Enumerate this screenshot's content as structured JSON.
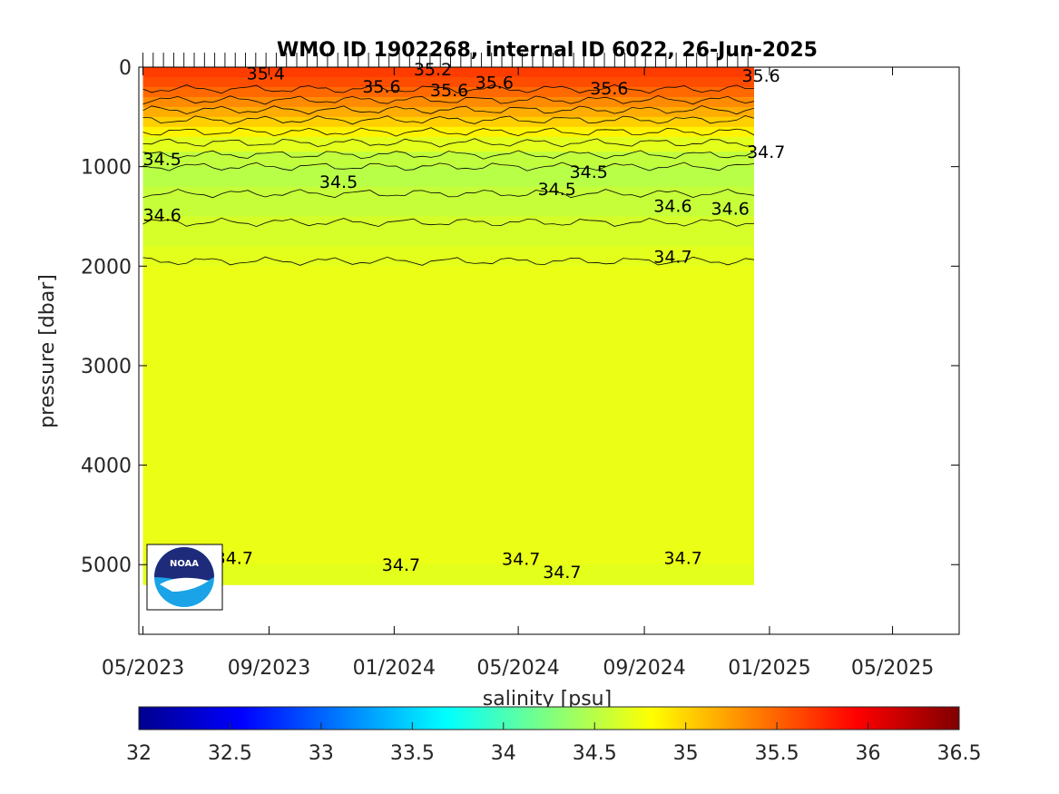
{
  "chart_data": {
    "type": "heatmap",
    "title": "WMO ID 1902268, internal ID 6022, 26-Jun-2025",
    "xlabel": "",
    "ylabel": "pressure [dbar]",
    "x_ticks": [
      "05/2023",
      "09/2023",
      "01/2024",
      "05/2024",
      "09/2024",
      "01/2025",
      "05/2025"
    ],
    "xlim": [
      "2023-04-27",
      "2025-07-05"
    ],
    "y_ticks": [
      0,
      1000,
      2000,
      3000,
      4000,
      5000
    ],
    "ylim": [
      0,
      5700
    ],
    "y_reversed": true,
    "grid": false,
    "data_start": "2023-05-01",
    "data_end": "2024-12-17",
    "colorbar": {
      "label": "salinity [psu]",
      "range": [
        32,
        36.5
      ],
      "ticks": [
        "32",
        "32.5",
        "33",
        "33.5",
        "34",
        "34.5",
        "35",
        "35.5",
        "36",
        "36.5"
      ],
      "colormap": "jet"
    },
    "salinity_profile": [
      {
        "pressure": 0,
        "salinity": 35.7
      },
      {
        "pressure": 100,
        "salinity": 35.65
      },
      {
        "pressure": 200,
        "salinity": 35.55
      },
      {
        "pressure": 300,
        "salinity": 35.4
      },
      {
        "pressure": 400,
        "salinity": 35.25
      },
      {
        "pressure": 500,
        "salinity": 35.1
      },
      {
        "pressure": 600,
        "salinity": 34.95
      },
      {
        "pressure": 700,
        "salinity": 34.78
      },
      {
        "pressure": 850,
        "salinity": 34.6
      },
      {
        "pressure": 1000,
        "salinity": 34.48
      },
      {
        "pressure": 1200,
        "salinity": 34.52
      },
      {
        "pressure": 1500,
        "salinity": 34.6
      },
      {
        "pressure": 1800,
        "salinity": 34.66
      },
      {
        "pressure": 2000,
        "salinity": 34.72
      },
      {
        "pressure": 5000,
        "salinity": 34.72
      },
      {
        "pressure": 5200,
        "salinity": 34.66
      }
    ],
    "contours": [
      {
        "level": "35.6",
        "pressure": 220
      },
      {
        "level": "35.4",
        "pressure": 330
      },
      {
        "level": "35.2",
        "pressure": 430
      },
      {
        "level": "35",
        "pressure": 530
      },
      {
        "level": "34.8",
        "pressure": 650
      },
      {
        "level": "34.7",
        "pressure": 760
      },
      {
        "level": "34.6",
        "pressure": 880
      },
      {
        "level": "34.5",
        "pressure": 1000
      },
      {
        "level": "34.5",
        "pressure": 1270
      },
      {
        "level": "34.6",
        "pressure": 1560
      },
      {
        "level": "34.7",
        "pressure": 1950
      }
    ],
    "contour_labels": [
      {
        "text": "35.4",
        "date": "2023-08-10",
        "pressure": 60
      },
      {
        "text": "35.6",
        "date": "2023-12-01",
        "pressure": 190
      },
      {
        "text": "35.2",
        "date": "2024-01-20",
        "pressure": 20
      },
      {
        "text": "35.6",
        "date": "2024-02-05",
        "pressure": 230
      },
      {
        "text": "35.6",
        "date": "2024-03-20",
        "pressure": 150
      },
      {
        "text": "35.6",
        "date": "2024-07-10",
        "pressure": 210
      },
      {
        "text": "35.6",
        "date": "2024-12-05",
        "pressure": 80
      },
      {
        "text": "34.5",
        "date": "2023-05-01",
        "pressure": 920
      },
      {
        "text": "34.5",
        "date": "2023-10-20",
        "pressure": 1150
      },
      {
        "text": "34.5",
        "date": "2024-06-20",
        "pressure": 1050
      },
      {
        "text": "34.5",
        "date": "2024-05-20",
        "pressure": 1220
      },
      {
        "text": "34.6",
        "date": "2023-05-01",
        "pressure": 1480
      },
      {
        "text": "34.6",
        "date": "2024-09-10",
        "pressure": 1390
      },
      {
        "text": "34.6",
        "date": "2024-11-05",
        "pressure": 1420
      },
      {
        "text": "34.7",
        "date": "2024-12-10",
        "pressure": 850
      },
      {
        "text": "34.7",
        "date": "2024-09-10",
        "pressure": 1900
      },
      {
        "text": "34.7",
        "date": "2023-07-10",
        "pressure": 4930
      },
      {
        "text": "34.7",
        "date": "2023-12-20",
        "pressure": 5000
      },
      {
        "text": "34.7",
        "date": "2024-04-15",
        "pressure": 4940
      },
      {
        "text": "34.7",
        "date": "2024-05-25",
        "pressure": 5070
      },
      {
        "text": "34.7",
        "date": "2024-09-20",
        "pressure": 4930
      }
    ],
    "annotation": "NOAA"
  }
}
